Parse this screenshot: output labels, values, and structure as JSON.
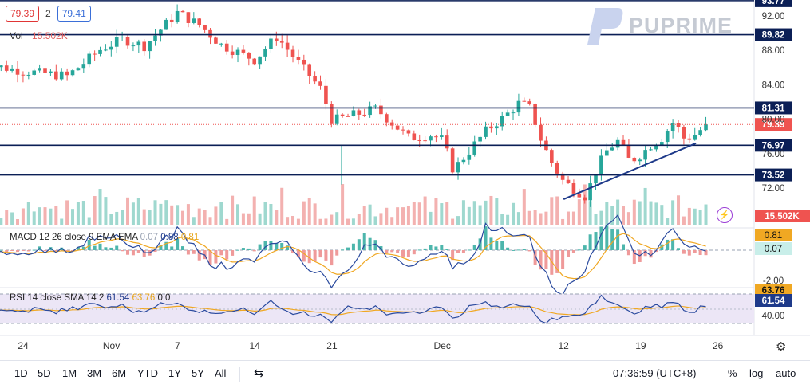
{
  "header": {
    "bid": "79.39",
    "qty": "2",
    "ask": "79.41",
    "vol_label": "Vol",
    "vol_value": "15.502K"
  },
  "logo": {
    "text": "PUPRIME"
  },
  "colors": {
    "up": "#26a69a",
    "down": "#ef5350",
    "macd_line": "#2a4a9e",
    "signal_line": "#f0a823",
    "level_line": "#0b1f56"
  },
  "chart_data": {
    "type": "candlestick",
    "y_axis_labels": [
      "92.00",
      "88.00",
      "84.00",
      "80.00",
      "76.00",
      "72.00"
    ],
    "x_axis_labels": [
      "24",
      "Nov",
      "7",
      "14",
      "21",
      "Dec",
      "12",
      "19",
      "26"
    ],
    "horizontal_levels": [
      {
        "label": "93.77",
        "value": 93.77
      },
      {
        "label": "89.82",
        "value": 89.82
      },
      {
        "label": "81.31",
        "value": 81.31
      },
      {
        "label": "76.97",
        "value": 76.97
      },
      {
        "label": "73.52",
        "value": 73.52
      }
    ],
    "last_price": {
      "label": "79.39",
      "value": 79.39
    },
    "volume_label": "15.502K",
    "close_path": [
      {
        "date": "Oct 20",
        "close": 86.5
      },
      {
        "date": "Oct 24",
        "close": 85.6
      },
      {
        "date": "Oct 28",
        "close": 85.0
      },
      {
        "date": "Oct 31",
        "close": 88.1
      },
      {
        "date": "Nov 2",
        "close": 89.3
      },
      {
        "date": "Nov 4",
        "close": 88.5
      },
      {
        "date": "Nov 7",
        "close": 92.4
      },
      {
        "date": "Nov 9",
        "close": 90.9
      },
      {
        "date": "Nov 11",
        "close": 88.6
      },
      {
        "date": "Nov 14",
        "close": 86.9
      },
      {
        "date": "Nov 16",
        "close": 89.6
      },
      {
        "date": "Nov 18",
        "close": 86.5
      },
      {
        "date": "Nov 20",
        "close": 83.5
      },
      {
        "date": "Nov 21",
        "close": 79.8
      },
      {
        "date": "Nov 23",
        "close": 80.5
      },
      {
        "date": "Nov 25",
        "close": 81.2
      },
      {
        "date": "Nov 28",
        "close": 77.8
      },
      {
        "date": "Nov 30",
        "close": 78.2
      },
      {
        "date": "Dec 1",
        "close": 77.6
      },
      {
        "date": "Dec 2",
        "close": 74.1
      },
      {
        "date": "Dec 5",
        "close": 78.7
      },
      {
        "date": "Dec 7",
        "close": 80.7
      },
      {
        "date": "Dec 8",
        "close": 81.9
      },
      {
        "date": "Dec 9",
        "close": 81.3
      },
      {
        "date": "Dec 10",
        "close": 77.4
      },
      {
        "date": "Dec 11",
        "close": 74.8
      },
      {
        "date": "Dec 12",
        "close": 72.7
      },
      {
        "date": "Dec 13",
        "close": 71.9
      },
      {
        "date": "Dec 14",
        "close": 71.0
      },
      {
        "date": "Dec 15",
        "close": 74.2
      },
      {
        "date": "Dec 16",
        "close": 76.5
      },
      {
        "date": "Dec 17",
        "close": 77.5
      },
      {
        "date": "Dec 18",
        "close": 75.1
      },
      {
        "date": "Dec 19",
        "close": 75.9
      },
      {
        "date": "Dec 20",
        "close": 77.1
      },
      {
        "date": "Dec 21",
        "close": 77.9
      },
      {
        "date": "Dec 22",
        "close": 79.8
      },
      {
        "date": "Dec 23",
        "close": 77.6
      },
      {
        "date": "Dec 24",
        "close": 78.3
      },
      {
        "date": "Dec 25",
        "close": 79.4
      }
    ],
    "trendline": [
      {
        "date": "Dec 12",
        "price": 70.7
      },
      {
        "date": "Dec 24",
        "price": 77.2
      }
    ],
    "macd": {
      "label": "MACD 12 26 close 9 EMA EMA",
      "values": [
        "0.07",
        "0.88",
        "0.81"
      ],
      "axis_labels": [
        "0.81",
        "0.07",
        "-2.00"
      ]
    },
    "rsi": {
      "label": "RSI 14 close SMA 14 2",
      "values": [
        "61.54",
        "63.76",
        "0",
        "0"
      ],
      "axis_labels": [
        "63.76",
        "61.54",
        "40.00"
      ]
    }
  },
  "toolbar": {
    "timeframes": [
      "1D",
      "5D",
      "1M",
      "3M",
      "6M",
      "YTD",
      "1Y",
      "5Y",
      "All"
    ],
    "time": "07:36:59 (UTC+8)",
    "percent": "%",
    "log": "log",
    "auto": "auto"
  }
}
